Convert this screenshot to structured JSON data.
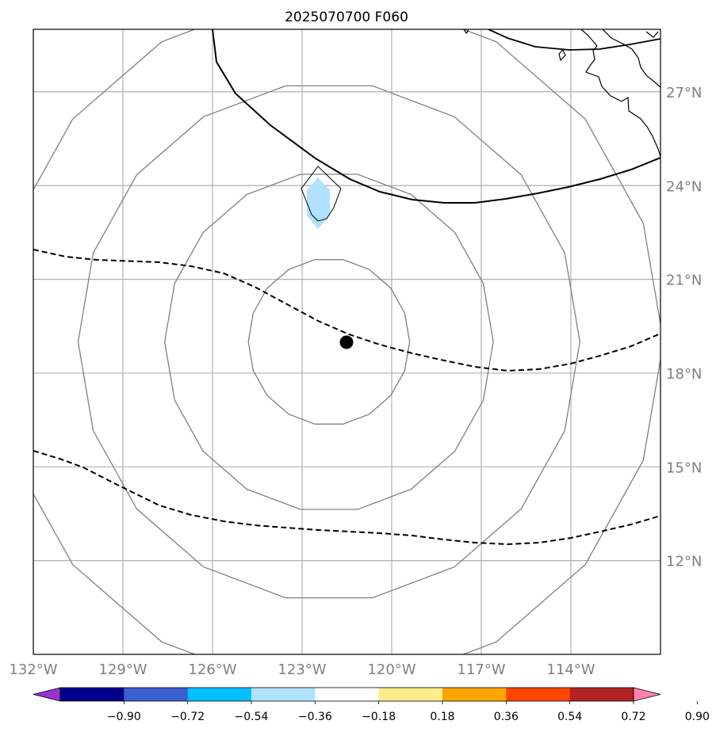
{
  "title": "2025070700 F060",
  "map": {
    "lon_range": [
      -132,
      -111
    ],
    "lat_range": [
      9,
      29
    ],
    "lon_ticks": [
      {
        "value": -132,
        "label": "132°W"
      },
      {
        "value": -129,
        "label": "129°W"
      },
      {
        "value": -126,
        "label": "126°W"
      },
      {
        "value": -123,
        "label": "123°W"
      },
      {
        "value": -120,
        "label": "120°W"
      },
      {
        "value": -117,
        "label": "117°W"
      },
      {
        "value": -114,
        "label": "114°W"
      }
    ],
    "lat_ticks": [
      {
        "value": 27,
        "label": "27°N"
      },
      {
        "value": 24,
        "label": "24°N"
      },
      {
        "value": 21,
        "label": "21°N"
      },
      {
        "value": 18,
        "label": "18°N"
      },
      {
        "value": 15,
        "label": "15°N"
      },
      {
        "value": 12,
        "label": "12°N"
      }
    ],
    "storm_center": {
      "lon": -122.1,
      "lat": 19.0
    },
    "range_rings_deg": [
      2.7,
      5.5,
      8.4,
      11.2
    ],
    "colors": {
      "grid": "#b0b0b0",
      "rings": "#808080",
      "contours": "#000000",
      "coast": "#000000"
    }
  },
  "colorbar": {
    "colors": [
      "#9932cc",
      "#00008b",
      "#3a5fcd",
      "#00bfff",
      "#b0e2ff",
      "#ffffff",
      "#ffec8b",
      "#ffa500",
      "#ff4500",
      "#b22222",
      "#ff82ab"
    ],
    "labels": [
      "−0.90",
      "−0.72",
      "−0.54",
      "−0.36",
      "−0.18",
      "0.18",
      "0.36",
      "0.54",
      "0.72",
      "0.90"
    ]
  },
  "shading_color": "#b0e2ff"
}
